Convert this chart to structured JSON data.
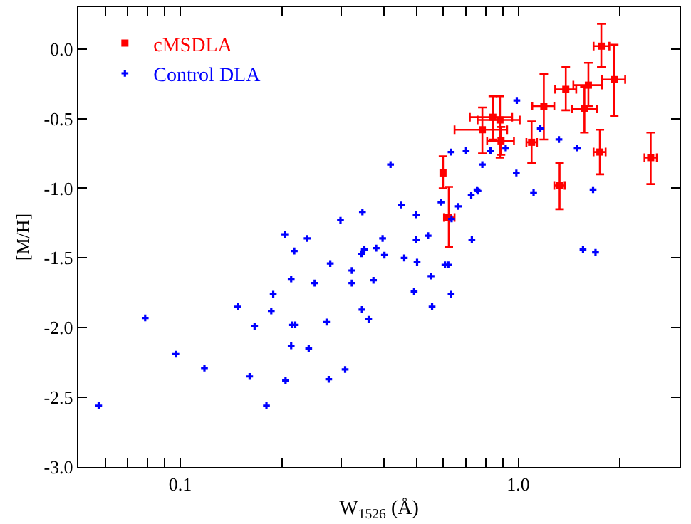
{
  "chart_data": {
    "type": "scatter",
    "xlabel": "W$_{1526}$ (Å)",
    "ylabel": "[M/H]",
    "log": "x",
    "legend": "top left",
    "xlim": [
      0.05,
      3
    ],
    "ylim": [
      -3.0,
      0.3
    ],
    "xticks": [
      {
        "value": 0.05,
        "label": null
      },
      {
        "value": 0.06,
        "label": null
      },
      {
        "value": 0.07,
        "label": null
      },
      {
        "value": 0.08,
        "label": null
      },
      {
        "value": 0.09,
        "label": null
      },
      {
        "value": 0.1,
        "label": "0.1"
      },
      {
        "value": 0.2,
        "label": null
      },
      {
        "value": 0.3,
        "label": null
      },
      {
        "value": 0.4,
        "label": null
      },
      {
        "value": 0.5,
        "label": null
      },
      {
        "value": 0.6,
        "label": null
      },
      {
        "value": 0.7,
        "label": null
      },
      {
        "value": 0.8,
        "label": null
      },
      {
        "value": 0.9,
        "label": null
      },
      {
        "value": 1,
        "label": "1.0"
      },
      {
        "value": 2,
        "label": null
      },
      {
        "value": 3,
        "label": null
      }
    ],
    "yticks": [
      {
        "value": -3.0,
        "label": "-3.0"
      },
      {
        "value": -2.5,
        "label": "-2.5"
      },
      {
        "value": -2.0,
        "label": "-2.0"
      },
      {
        "value": -1.5,
        "label": "-1.5"
      },
      {
        "value": -1.0,
        "label": "-1.0"
      },
      {
        "value": -0.5,
        "label": "-0.5"
      },
      {
        "value": 0.0,
        "label": "0.0"
      }
    ],
    "series": [
      {
        "name": "cMSDLA",
        "color": "#ff0000",
        "marker": "square",
        "x": [
          0.599,
          0.623,
          0.783,
          0.841,
          0.883,
          0.889,
          1.095,
          1.19,
          1.325,
          1.382,
          1.569,
          1.612,
          1.76,
          1.922,
          1.743,
          2.464
        ],
        "values": [
          -0.89,
          -1.21,
          -0.58,
          -0.49,
          -0.51,
          -0.66,
          -0.67,
          -0.41,
          -0.98,
          -0.29,
          -0.43,
          -0.26,
          0.02,
          -0.22,
          -0.74,
          -0.78
        ],
        "errors": [
          [
            -1.0,
            -0.77
          ],
          [
            -1.42,
            -0.99
          ],
          [
            -0.75,
            -0.42
          ],
          [
            -0.65,
            -0.34
          ],
          [
            -0.78,
            -0.34
          ],
          [
            -0.76,
            -0.56
          ],
          [
            -0.82,
            -0.52
          ],
          [
            -0.65,
            -0.18
          ],
          [
            -1.15,
            -0.82
          ],
          [
            -0.44,
            -0.13
          ],
          [
            -0.6,
            -0.27
          ],
          [
            -0.41,
            -0.1
          ],
          [
            -0.13,
            0.18
          ],
          [
            -0.48,
            0.03
          ],
          [
            -0.9,
            -0.58
          ],
          [
            -0.97,
            -0.6
          ]
        ],
        "xerrors": [
          null,
          [
            0.603,
            0.648
          ],
          [
            0.648,
            0.927
          ],
          [
            0.719,
            0.959
          ],
          [
            0.758,
            1.01
          ],
          [
            0.809,
            0.971
          ],
          [
            1.057,
            1.136
          ],
          [
            1.1,
            1.278
          ],
          [
            1.278,
            1.372
          ],
          [
            1.286,
            1.484
          ],
          [
            1.441,
            1.709
          ],
          [
            1.455,
            1.77
          ],
          [
            1.67,
            1.859
          ],
          [
            1.77,
            2.071
          ],
          [
            1.67,
            1.813
          ],
          [
            2.362,
            2.569
          ]
        ]
      },
      {
        "name": "Control DLA",
        "color": "#0000ff",
        "marker": "cross",
        "x": [
          0.0574,
          0.0788,
          0.0971,
          0.118,
          0.148,
          0.1605,
          0.166,
          0.18,
          0.186,
          0.1885,
          0.204,
          0.205,
          0.213,
          0.213,
          0.214,
          0.219,
          0.2175,
          0.2375,
          0.24,
          0.25,
          0.271,
          0.275,
          0.278,
          0.3076,
          0.322,
          0.322,
          0.344,
          0.3506,
          0.345,
          0.361,
          0.373,
          0.38,
          0.397,
          0.402,
          0.46,
          0.492,
          0.499,
          0.502,
          0.541,
          0.552,
          0.556,
          0.607,
          0.621,
          0.633,
          0.729,
          1.554,
          1.692,
          0.298,
          0.346,
          0.419,
          0.451,
          0.499,
          0.591,
          0.633,
          0.635,
          0.665,
          0.701,
          0.726,
          0.755,
          0.76,
          0.783,
          0.828,
          0.918,
          0.987,
          0.99,
          1.11,
          1.162,
          1.319,
          1.494,
          1.664
        ],
        "values": [
          -2.56,
          -1.93,
          -2.19,
          -2.29,
          -1.85,
          -2.35,
          -1.99,
          -2.56,
          -1.88,
          -1.76,
          -1.33,
          -2.38,
          -1.65,
          -2.13,
          -1.98,
          -1.98,
          -1.45,
          -1.36,
          -2.15,
          -1.68,
          -1.96,
          -2.37,
          -1.54,
          -2.3,
          -1.59,
          -1.68,
          -1.47,
          -1.44,
          -1.87,
          -1.94,
          -1.66,
          -1.43,
          -1.36,
          -1.48,
          -1.5,
          -1.74,
          -1.37,
          -1.53,
          -1.34,
          -1.63,
          -1.85,
          -1.55,
          -1.55,
          -1.76,
          -1.37,
          -1.44,
          -1.46,
          -1.23,
          -1.17,
          -0.83,
          -1.12,
          -1.19,
          -1.1,
          -0.74,
          -1.22,
          -1.13,
          -0.73,
          -1.05,
          -1.01,
          -1.02,
          -0.83,
          -0.73,
          -0.71,
          -0.89,
          -0.37,
          -1.03,
          -0.57,
          -0.65,
          -0.71,
          -1.01
        ]
      }
    ]
  }
}
